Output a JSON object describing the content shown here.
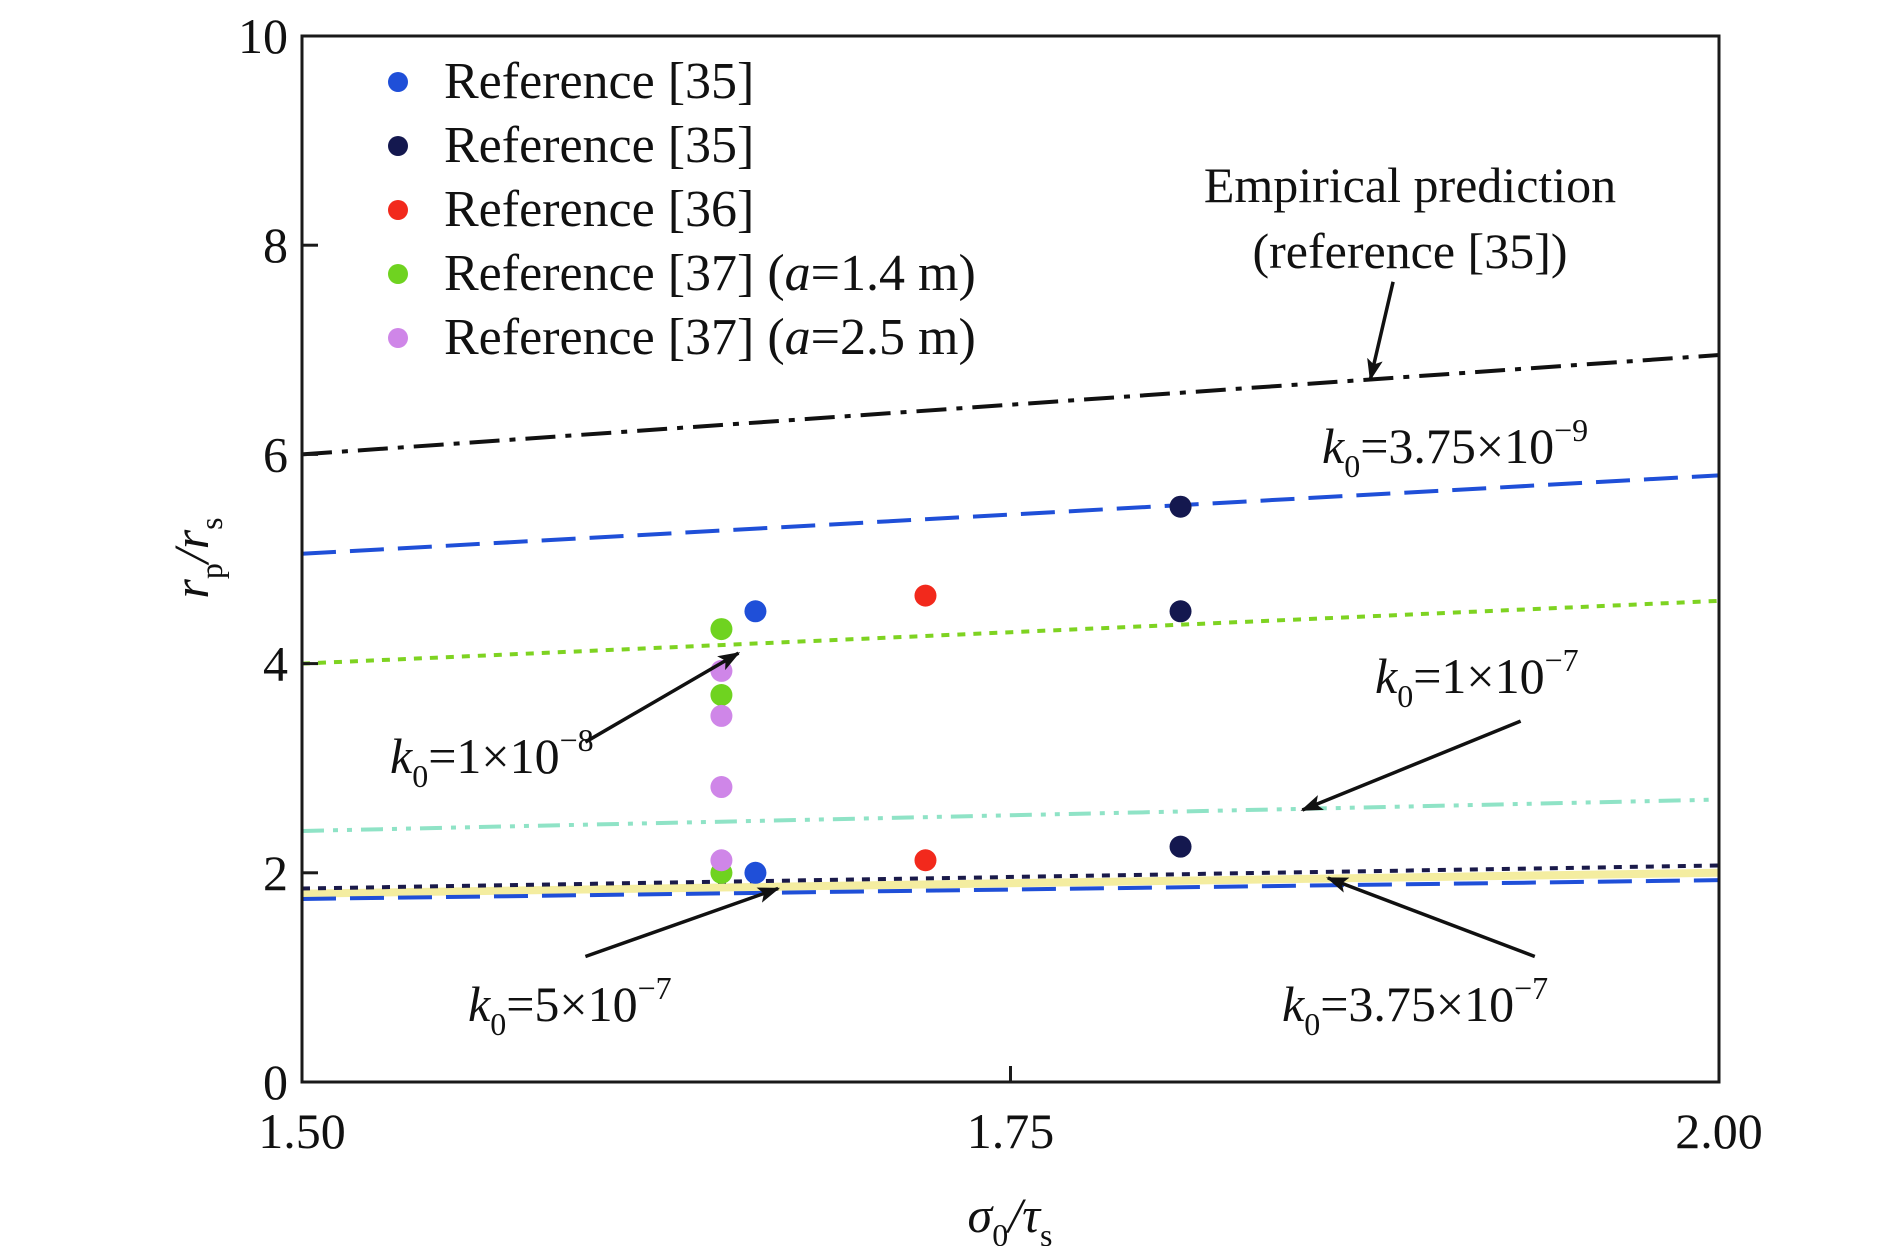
{
  "chart_data": {
    "type": "scatter",
    "xlabel": {
      "main": "σ",
      "sub": "0",
      "mid": "/τ",
      "sub2": "s"
    },
    "ylabel": {
      "main": "r",
      "sub": "p",
      "mid": "/r",
      "sub2": "s"
    },
    "xlim": [
      1.5,
      2.0
    ],
    "ylim": [
      0,
      10
    ],
    "x_ticks": [
      1.5,
      1.75,
      2.0
    ],
    "x_tick_labels": [
      "1.50",
      "1.75",
      "2.00"
    ],
    "y_ticks": [
      0,
      2,
      4,
      6,
      8,
      10
    ],
    "y_tick_labels": [
      "0",
      "2",
      "4",
      "6",
      "8",
      "10"
    ],
    "grid": false,
    "legend_position": "top-left",
    "series": [
      {
        "name": "Reference [35]",
        "color": "#1f4fd8",
        "points": [
          [
            1.66,
            4.5
          ],
          [
            1.66,
            2.0
          ]
        ]
      },
      {
        "name": "Reference [35]",
        "color": "#14184f",
        "points": [
          [
            1.81,
            5.5
          ],
          [
            1.81,
            4.5
          ],
          [
            1.81,
            2.25
          ]
        ]
      },
      {
        "name": "Reference [36]",
        "color": "#f2291c",
        "points": [
          [
            1.72,
            4.65
          ],
          [
            1.72,
            2.12
          ]
        ]
      },
      {
        "name": "Reference [37] (",
        "name_italic": "a",
        "name_tail": "=1.4 m)",
        "color": "#6fd320",
        "points": [
          [
            1.648,
            4.33
          ],
          [
            1.648,
            3.7
          ],
          [
            1.648,
            2.0
          ]
        ]
      },
      {
        "name": "Reference [37] (",
        "name_italic": "a",
        "name_tail": "=2.5 m)",
        "color": "#cf86e8",
        "points": [
          [
            1.648,
            3.93
          ],
          [
            1.648,
            3.5
          ],
          [
            1.648,
            2.82
          ],
          [
            1.648,
            2.12
          ]
        ]
      }
    ],
    "lines": [
      {
        "id": "empirical",
        "color": "#111111",
        "dash": "dashdot",
        "x": [
          1.5,
          2.0
        ],
        "y": [
          6.0,
          6.95
        ]
      },
      {
        "id": "k375e-9",
        "color": "#1f4fd8",
        "dash": "dashed",
        "x": [
          1.5,
          2.0
        ],
        "y": [
          5.05,
          5.8
        ]
      },
      {
        "id": "k1e-8",
        "color": "#7ed321",
        "dash": "dotted",
        "x": [
          1.5,
          2.0
        ],
        "y": [
          4.0,
          4.6
        ]
      },
      {
        "id": "k1e-7",
        "color": "#8fe3c6",
        "dash": "dashdotdot",
        "x": [
          1.5,
          2.0
        ],
        "y": [
          2.4,
          2.7
        ]
      },
      {
        "id": "k375e-7-solid",
        "color": "#f4eda0",
        "dash": "solid",
        "x": [
          1.5,
          2.0
        ],
        "y": [
          1.8,
          2.0
        ]
      },
      {
        "id": "k375e-7",
        "color": "#1a1a4a",
        "dash": "dotted",
        "x": [
          1.5,
          2.0
        ],
        "y": [
          1.85,
          2.07
        ]
      },
      {
        "id": "k5e-7",
        "color": "#1f4fd8",
        "dash": "dashed",
        "x": [
          1.5,
          2.0
        ],
        "y": [
          1.75,
          1.93
        ]
      }
    ],
    "annotations": [
      {
        "id": "empirical",
        "lines": [
          "Empirical prediction",
          "(reference [35])"
        ],
        "arrow_from": [
          1.885,
          7.65
        ],
        "arrow_to": [
          1.877,
          6.72
        ]
      },
      {
        "id": "k375e-9",
        "k": "k",
        "sub": "0",
        "eq": "=3.75×10",
        "exp": "−9"
      },
      {
        "id": "k1e-8",
        "k": "k",
        "sub": "0",
        "eq": "=1×10",
        "exp": "−8",
        "arrow_from": [
          1.6,
          3.25
        ],
        "arrow_to": [
          1.654,
          4.1
        ]
      },
      {
        "id": "k1e-7",
        "k": "k",
        "sub": "0",
        "eq": "=1×10",
        "exp": "−7",
        "arrow_from": [
          1.93,
          3.45
        ],
        "arrow_to": [
          1.853,
          2.6
        ]
      },
      {
        "id": "k5e-7",
        "k": "k",
        "sub": "0",
        "eq": "=5×10",
        "exp": "−7",
        "arrow_from": [
          1.6,
          1.2
        ],
        "arrow_to": [
          1.668,
          1.85
        ]
      },
      {
        "id": "k375e-7",
        "k": "k",
        "sub": "0",
        "eq": "=3.75×10",
        "exp": "−7",
        "arrow_from": [
          1.935,
          1.2
        ],
        "arrow_to": [
          1.862,
          1.95
        ]
      }
    ]
  }
}
